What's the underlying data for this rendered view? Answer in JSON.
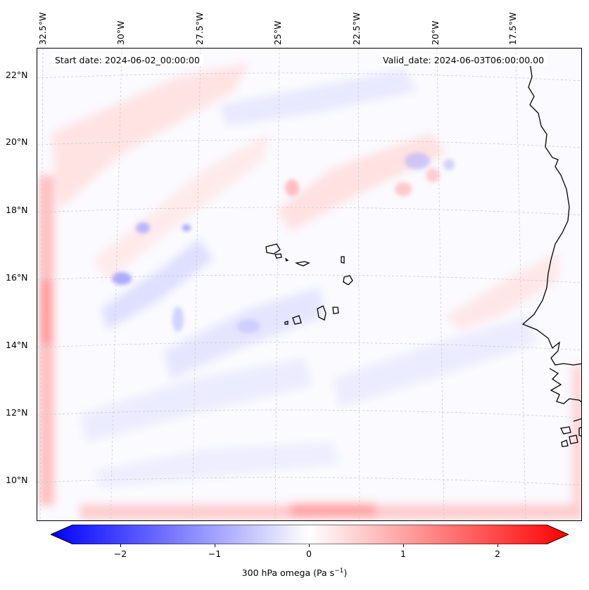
{
  "map": {
    "start_date": "Start date: 2024-06-02_00:00:00",
    "valid_date": "Valid_date: 2024-06-03T06:00:00.00",
    "lon_labels": [
      "32.5°W",
      "30°W",
      "27.5°W",
      "25°W",
      "22.5°W",
      "20°W",
      "17.5°W"
    ],
    "lat_labels": [
      "22°N",
      "20°N",
      "18°N",
      "16°N",
      "14°N",
      "12°N",
      "10°N"
    ],
    "variable": "300 hPa omega",
    "units": "Pa s",
    "units_exponent": "−1",
    "extent": {
      "lon_min": -33,
      "lon_max": -16,
      "lat_min": 8.8,
      "lat_max": 22.8
    }
  },
  "colorbar": {
    "min": -2.5,
    "max": 2.5,
    "ticks": [
      "−2",
      "−1",
      "0",
      "1",
      "2"
    ],
    "tick_values": [
      -2,
      -1,
      0,
      1,
      2
    ],
    "colors": {
      "negative": "#0000ff",
      "zero": "#ffffff",
      "positive": "#ff0000"
    }
  },
  "colors": {
    "coastline": "#000000",
    "gridline": "#c8c8c8"
  }
}
